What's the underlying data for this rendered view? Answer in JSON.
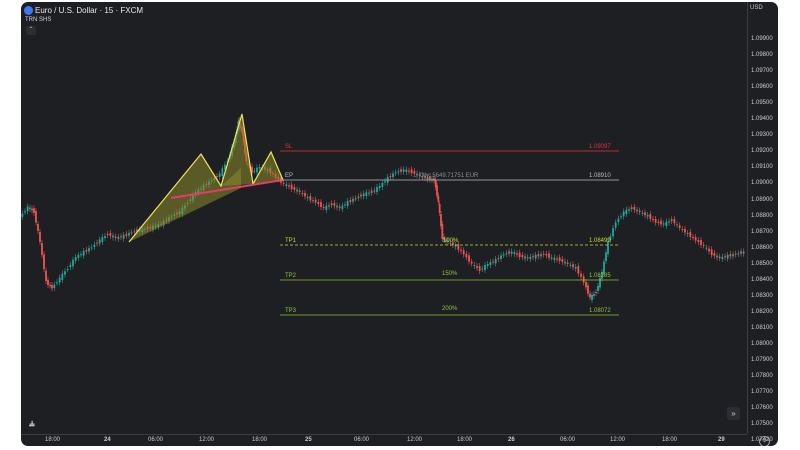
{
  "header": {
    "title": "Euro / U.S. Dollar · 15 · FXCM",
    "indicator": "TRN SHS",
    "currency": "USD"
  },
  "price_axis": {
    "labels": [
      "1.09900",
      "1.09800",
      "1.09700",
      "1.09600",
      "1.09500",
      "1.09400",
      "1.09300",
      "1.09200",
      "1.09100",
      "1.09000",
      "1.08900",
      "1.08800",
      "1.08700",
      "1.08600",
      "1.08500",
      "1.08400",
      "1.08300",
      "1.08200",
      "1.08100",
      "1.08000",
      "1.07900",
      "1.07800",
      "1.07700",
      "1.07600",
      "1.07500",
      "1.07420"
    ]
  },
  "time_axis": {
    "labels": [
      "18:00",
      "24",
      "06:00",
      "12:00",
      "18:00",
      "25",
      "06:00",
      "12:00",
      "18:00",
      "26",
      "06:00",
      "12:00",
      "18:00",
      "29"
    ]
  },
  "levels": {
    "sl": {
      "label": "SL",
      "price_text": "1.09097",
      "color": "#e0323a"
    },
    "ep": {
      "label": "EP",
      "price_text": "1.08910",
      "detail": "... Qty: 5649.71751 EUR",
      "color": "#b7bbc4"
    },
    "tp1": {
      "label": "TP1",
      "pct": "100%",
      "price_text": "1.08499",
      "color": "#c6d93c"
    },
    "tp2": {
      "label": "TP2",
      "pct": "150%",
      "price_text": "1.08285",
      "color": "#8fc43a"
    },
    "tp3": {
      "label": "TP3",
      "pct": "200%",
      "price_text": "1.08072",
      "color": "#8fc43a"
    }
  },
  "colors": {
    "background": "#1e1f22",
    "up_candle": "#26a69a",
    "down_candle": "#ef5350",
    "pattern_outline": "#f2e35a",
    "neckline": "#e83a6b"
  },
  "icons": {
    "logo": "euro-usd-flag-icon",
    "collapse": "chevron-up-icon",
    "scroll": "double-chevron-right-icon",
    "settings": "gear-icon",
    "brand": "tradingview-logo"
  }
}
